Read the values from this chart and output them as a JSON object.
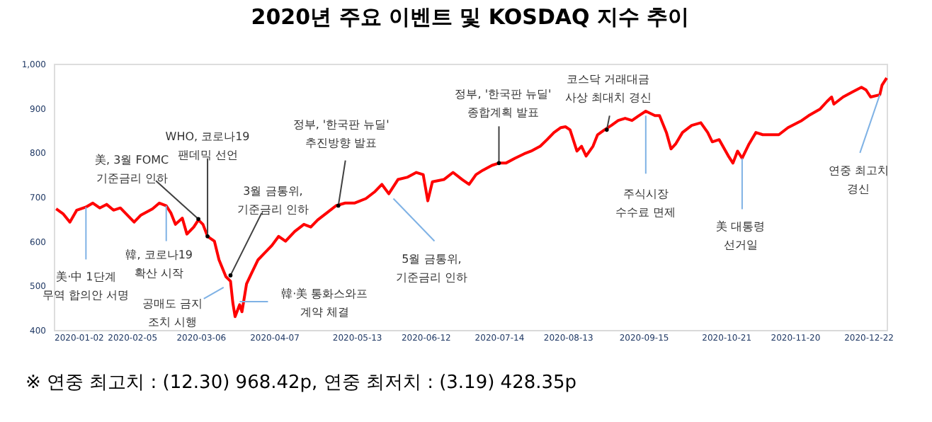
{
  "chart_data": {
    "type": "line",
    "title": "2020년 주요 이벤트 및 KOSDAQ 지수 추이",
    "x": [
      "2020-01-03",
      "2020-01-06",
      "2020-01-09",
      "2020-01-12",
      "2020-01-16",
      "2020-01-19",
      "2020-01-22",
      "2020-01-25",
      "2020-01-28",
      "2020-01-31",
      "2020-02-03",
      "2020-02-06",
      "2020-02-09",
      "2020-02-14",
      "2020-02-17",
      "2020-02-20",
      "2020-02-22",
      "2020-02-24",
      "2020-02-27",
      "2020-02-29",
      "2020-03-03",
      "2020-03-05",
      "2020-03-07",
      "2020-03-09",
      "2020-03-12",
      "2020-03-14",
      "2020-03-17",
      "2020-03-19",
      "2020-03-20",
      "2020-03-21",
      "2020-03-23",
      "2020-03-24",
      "2020-03-26",
      "2020-03-28",
      "2020-03-31",
      "2020-04-03",
      "2020-04-06",
      "2020-04-09",
      "2020-04-12",
      "2020-04-16",
      "2020-04-20",
      "2020-04-23",
      "2020-04-26",
      "2020-04-30",
      "2020-05-04",
      "2020-05-08",
      "2020-05-12",
      "2020-05-17",
      "2020-05-21",
      "2020-05-24",
      "2020-05-27",
      "2020-05-31",
      "2020-06-04",
      "2020-06-08",
      "2020-06-11",
      "2020-06-13",
      "2020-06-15",
      "2020-06-20",
      "2020-06-24",
      "2020-06-28",
      "2020-07-01",
      "2020-07-04",
      "2020-07-07",
      "2020-07-11",
      "2020-07-14",
      "2020-07-17",
      "2020-07-21",
      "2020-07-25",
      "2020-07-28",
      "2020-08-01",
      "2020-08-04",
      "2020-08-07",
      "2020-08-10",
      "2020-08-12",
      "2020-08-14",
      "2020-08-17",
      "2020-08-19",
      "2020-08-21",
      "2020-08-24",
      "2020-08-26",
      "2020-08-29",
      "2020-09-01",
      "2020-09-04",
      "2020-09-07",
      "2020-09-10",
      "2020-09-13",
      "2020-09-16",
      "2020-09-20",
      "2020-09-22",
      "2020-09-25",
      "2020-09-27",
      "2020-09-29",
      "2020-10-02",
      "2020-10-06",
      "2020-10-10",
      "2020-10-13",
      "2020-10-15",
      "2020-10-18",
      "2020-10-22",
      "2020-10-24",
      "2020-10-26",
      "2020-10-28",
      "2020-10-31",
      "2020-11-03",
      "2020-11-06",
      "2020-11-09",
      "2020-11-13",
      "2020-11-17",
      "2020-11-23",
      "2020-11-26",
      "2020-12-01",
      "2020-12-04",
      "2020-12-06",
      "2020-12-07",
      "2020-12-11",
      "2020-12-15",
      "2020-12-19",
      "2020-12-21",
      "2020-12-23",
      "2020-12-27",
      "2020-12-28",
      "2020-12-30"
    ],
    "series": [
      {
        "color": "#ff0000",
        "values": [
          673,
          662,
          643,
          670,
          677,
          686,
          675,
          683,
          670,
          675,
          659,
          643,
          659,
          673,
          686,
          680,
          664,
          638,
          652,
          616,
          632,
          648,
          638,
          611,
          600,
          558,
          520,
          510,
          462,
          430,
          457,
          441,
          504,
          526,
          558,
          574,
          590,
          611,
          600,
          622,
          638,
          632,
          648,
          664,
          680,
          686,
          686,
          696,
          712,
          728,
          707,
          739,
          744,
          755,
          750,
          691,
          734,
          739,
          755,
          739,
          728,
          750,
          760,
          771,
          776,
          776,
          787,
          797,
          803,
          814,
          829,
          845,
          856,
          858,
          851,
          803,
          814,
          792,
          814,
          840,
          851,
          861,
          872,
          877,
          872,
          883,
          893,
          883,
          883,
          845,
          808,
          819,
          845,
          861,
          867,
          845,
          824,
          829,
          792,
          776,
          803,
          787,
          819,
          845,
          840,
          840,
          840,
          856,
          872,
          883,
          898,
          915,
          925,
          909,
          925,
          936,
          947,
          941,
          925,
          930,
          952,
          968
        ]
      }
    ],
    "xlim": [
      "2020-01-02",
      "2020-12-30"
    ],
    "xticks": [
      "2020-01-02",
      "2020-02-05",
      "2020-03-06",
      "2020-04-07",
      "2020-05-13",
      "2020-06-12",
      "2020-07-14",
      "2020-08-13",
      "2020-09-15",
      "2020-10-21",
      "2020-11-20",
      "2020-12-22"
    ],
    "ylim": [
      400,
      1000
    ],
    "yticks": [
      400,
      500,
      600,
      700,
      800,
      900,
      {
        "value": 1000,
        "label": "1,000"
      }
    ],
    "annotations": [
      {
        "text": "美·中 1단계\n무역 합의안 서명",
        "x": "2020-01-16",
        "y": 677
      },
      {
        "text": "美, 3월 FOMC\n기준금리 인하",
        "x": "2020-03-05",
        "y": 650
      },
      {
        "text": "WHO, 코로나19\n팬데믹 선언",
        "x": "2020-03-09",
        "y": 611
      },
      {
        "text": "3월 금통위,\n기준금리 인하",
        "x": "2020-03-19",
        "y": 523
      },
      {
        "text": "韓, 코로나19\n확산 시작",
        "x": "2020-02-20",
        "y": 680
      },
      {
        "text": "공매도 금지\n조치 시행",
        "x": "2020-03-16",
        "y": 496
      },
      {
        "text": "韓·美 통화스와프\n계약 체결",
        "x": "2020-03-23",
        "y": 464
      },
      {
        "text": "정부, '한국판 뉴딜'\n추진방향 발표",
        "x": "2020-05-05",
        "y": 680
      },
      {
        "text": "5월 금통위,\n기준금리 인하",
        "x": "2020-05-29",
        "y": 696
      },
      {
        "text": "정부, '한국판 뉴딜'\n종합계획 발표",
        "x": "2020-07-14",
        "y": 776
      },
      {
        "text": "코스닥 거래대금\n사상 최대치 경신",
        "x": "2020-08-30",
        "y": 851
      },
      {
        "text": "주식시장\n수수료 면제",
        "x": "2020-09-16",
        "y": 883
      },
      {
        "text": "美 대통령\n선거일",
        "x": "2020-10-28",
        "y": 787
      },
      {
        "text": "연중 최고치\n경신",
        "x": "2020-12-27",
        "y": 930
      },
      "※ 연중 최고치 : (12.30) 968.42p, 연중 최저치 : (3.19) 428.35p"
    ]
  }
}
